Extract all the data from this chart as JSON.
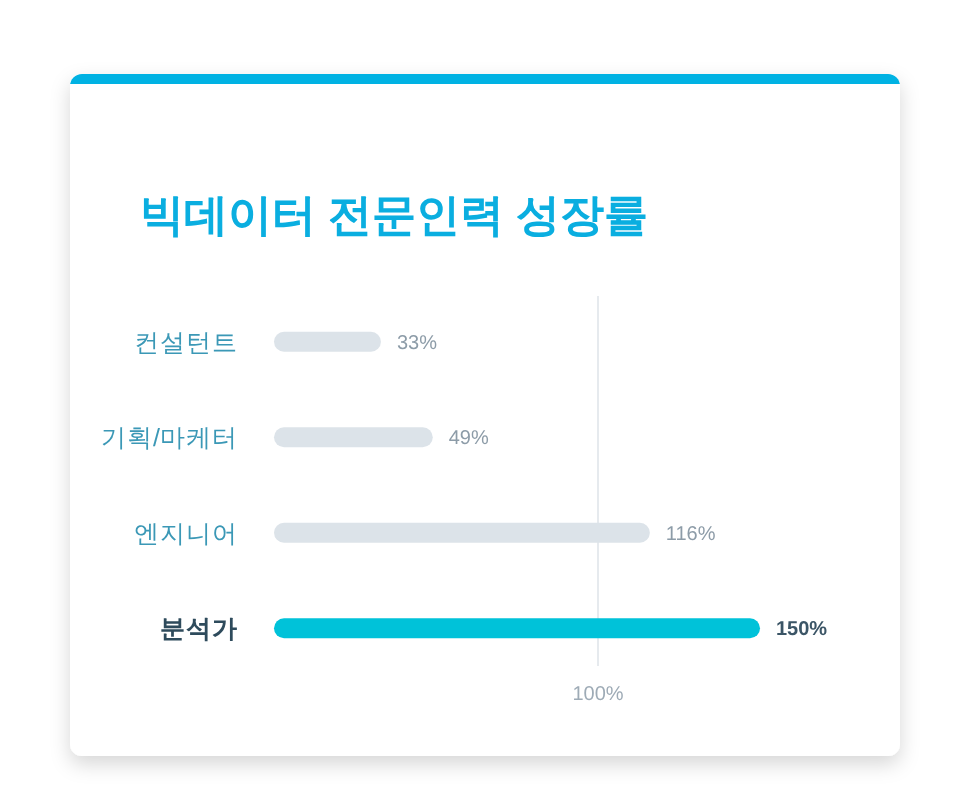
{
  "chart_data": {
    "type": "bar",
    "orientation": "horizontal",
    "title": "빅데이터 전문인력 성장률",
    "categories": [
      "컨설턴트",
      "기획/마케터",
      "엔지니어",
      "분석가"
    ],
    "values": [
      33,
      49,
      116,
      150
    ],
    "colors": [
      "#dce3e9",
      "#dce3e9",
      "#dce3e9",
      "#00c2d9"
    ],
    "value_labels": [
      "33%",
      "49%",
      "116%",
      "150%"
    ],
    "tick_labels": "y",
    "ref_lines": [
      {
        "axis": "x",
        "value": 100,
        "label": "100%",
        "color": "#e6eaee"
      }
    ]
  }
}
